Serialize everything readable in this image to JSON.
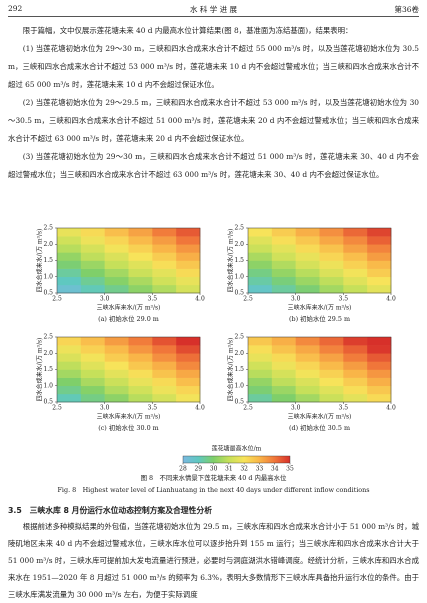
{
  "header": {
    "page": "292",
    "journal": "水 科 学 进 展",
    "volume": "第36卷"
  },
  "paragraphs": [
    "限于篇幅，文中仅展示莲花塘未来 40 d 内最高水位计算结果(图 8，基准面为冻结基面)，结果表明：",
    "(1) 当莲花塘初始水位为 29～30 m，三峡和四水合成来水合计不超过 55 000 m³/s 时，以及当莲花塘初始水位为 30.5 m，三峡和四水合成来水合计不超过 53 000 m³/s 时，莲花塘未来 10 d 内不会超过警戒水位；当三峡和四水合成来水合计不超过 65 000 m³/s 时，莲花塘未来 10 d 内不会超过保证水位。",
    "(2) 当莲花塘初始水位为 29～29.5 m，三峡和四水合成来水合计不超过 53 000 m³/s 时，以及当莲花塘初始水位为 30～30.5 m，三峡和四水合成来水合计不超过 51 000 m³/s 时，莲花塘未来 20 d 内不会超过警戒水位；当三峡和四水合成来水合计不超过 63 000 m³/s 时，莲花塘未来 20 d 内不会超过保证水位。",
    "(3) 当莲花塘初始水位为 29～30 m，三峡和四水合成来水合计不超过 51 000 m³/s 时，莲花塘未来 30、40 d 内不会超过警戒水位；当三峡和四水合成来水合计不超过 63 000 m³/s 时，莲花塘未来 30、40 d 内不会超过保证水位。"
  ],
  "chart_data": {
    "type": "heatmap",
    "x_label": "三峡水库来水/(万 m³/s)",
    "y_label": "四水合成来水/(万 m³/s)",
    "xlim": [
      2.5,
      4.0
    ],
    "ylim": [
      0.5,
      2.5
    ],
    "xticks": [
      2.5,
      {
        "value": 3,
        "label": "3.0"
      },
      3.5,
      {
        "value": 4,
        "label": "4.0"
      }
    ],
    "yticks": [
      0.5,
      {
        "value": 1,
        "label": "1.0"
      },
      1.5,
      {
        "value": 2,
        "label": "2.0"
      },
      2.5
    ],
    "x_bins": [
      2.5,
      2.75,
      3.0,
      3.25,
      3.5,
      3.75,
      4.0
    ],
    "y_bins": [
      0.5,
      0.75,
      1.0,
      1.25,
      1.5,
      1.75,
      2.0,
      2.25,
      2.5
    ],
    "colormap": [
      "#7ab8e0",
      "#5fc8c0",
      "#7fcf6a",
      "#c6e05a",
      "#f7e35a",
      "#f9b548",
      "#f0763a",
      "#d7302a"
    ],
    "panels": [
      {
        "caption": "(a) 初始水位 29.0 m",
        "values": [
          [
            28.5,
            29.1,
            29.6,
            30.2,
            30.7,
            31.3
          ],
          [
            29.0,
            29.5,
            30.1,
            30.6,
            31.2,
            31.7
          ],
          [
            29.4,
            30.0,
            30.5,
            31.1,
            31.6,
            32.2
          ],
          [
            29.9,
            30.4,
            31.0,
            31.5,
            32.1,
            32.6
          ],
          [
            30.3,
            30.9,
            31.4,
            32.0,
            32.5,
            33.1
          ],
          [
            30.8,
            31.3,
            31.9,
            32.4,
            33.0,
            33.5
          ],
          [
            31.2,
            31.8,
            32.3,
            32.9,
            33.4,
            34.0
          ],
          [
            31.7,
            32.2,
            32.8,
            33.3,
            33.9,
            34.4
          ]
        ]
      },
      {
        "caption": "(b) 初始水位 29.5 m",
        "values": [
          [
            28.8,
            29.4,
            29.9,
            30.5,
            31.0,
            31.6
          ],
          [
            29.3,
            29.8,
            30.4,
            30.9,
            31.5,
            32.0
          ],
          [
            29.7,
            30.3,
            30.8,
            31.4,
            31.9,
            32.5
          ],
          [
            30.2,
            30.7,
            31.3,
            31.8,
            32.4,
            32.9
          ],
          [
            30.6,
            31.2,
            31.7,
            32.3,
            32.8,
            33.4
          ],
          [
            31.1,
            31.6,
            32.2,
            32.7,
            33.3,
            33.8
          ],
          [
            31.5,
            32.1,
            32.6,
            33.2,
            33.7,
            34.3
          ],
          [
            32.0,
            32.5,
            33.1,
            33.6,
            34.2,
            34.7
          ]
        ]
      },
      {
        "caption": "(c) 初始水位 30.0 m",
        "values": [
          [
            29.1,
            29.7,
            30.2,
            30.8,
            31.3,
            31.9
          ],
          [
            29.6,
            30.1,
            30.7,
            31.2,
            31.8,
            32.3
          ],
          [
            30.0,
            30.6,
            31.1,
            31.7,
            32.2,
            32.8
          ],
          [
            30.5,
            31.0,
            31.6,
            32.1,
            32.7,
            33.2
          ],
          [
            30.9,
            31.5,
            32.0,
            32.6,
            33.1,
            33.7
          ],
          [
            31.4,
            31.9,
            32.5,
            33.0,
            33.6,
            34.1
          ],
          [
            31.8,
            32.4,
            32.9,
            33.5,
            34.0,
            34.6
          ],
          [
            32.3,
            32.8,
            33.4,
            33.9,
            34.5,
            35.0
          ]
        ]
      },
      {
        "caption": "(d) 初始水位 30.5 m",
        "values": [
          [
            29.4,
            30.0,
            30.5,
            31.1,
            31.6,
            32.2
          ],
          [
            29.9,
            30.4,
            31.0,
            31.5,
            32.1,
            32.6
          ],
          [
            30.3,
            30.9,
            31.4,
            32.0,
            32.5,
            33.1
          ],
          [
            30.8,
            31.3,
            31.9,
            32.4,
            33.0,
            33.5
          ],
          [
            31.2,
            31.8,
            32.3,
            32.9,
            33.4,
            34.0
          ],
          [
            31.7,
            32.2,
            32.8,
            33.3,
            33.9,
            34.4
          ],
          [
            32.1,
            32.7,
            33.2,
            33.8,
            34.3,
            34.9
          ],
          [
            32.6,
            33.1,
            33.7,
            34.2,
            34.8,
            35.3
          ]
        ]
      }
    ],
    "colorbar": {
      "label": "莲花塘最高水位/m",
      "lim": [
        28,
        35
      ],
      "ticks": [
        28,
        29,
        30,
        31,
        32,
        33,
        34,
        35
      ]
    },
    "caption_cn": "图 8　不同来水情景下莲花塘未来 40 d 内最高水位",
    "caption_en": "Fig. 8　Highest water level of Lianhuatang in the next 40 days under different inflow conditions"
  },
  "section": {
    "heading": "3.5　三峡水库 8 月份运行水位动态控制方案及合理性分析",
    "paragraph": "根据前述多种模拟结果的外包值，当莲花塘初始水位为 29.5 m，三峡水库和四水合成来水合计小于 51 000 m³/s 时，城陵矶地区未来 40 d 内不会超过警戒水位，三峡水库水位可以逐步抬升到 155 m 运行；当三峡水库和四水合成来水合计大于 51 000 m³/s 时，三峡水库可提前加大发电流量进行预泄，必要时与洞庭湖洪水错峰调度。经统计分析，三峡水库和四水合成来水在 1951—2020 年 8 月超过 51 000 m³/s 的频率为 6.3%，表明大多数情形下三峡水库具备抬升运行水位的条件。由于三峡水库满发流量为 30 000 m³/s 左右，为便于实际调度"
  }
}
